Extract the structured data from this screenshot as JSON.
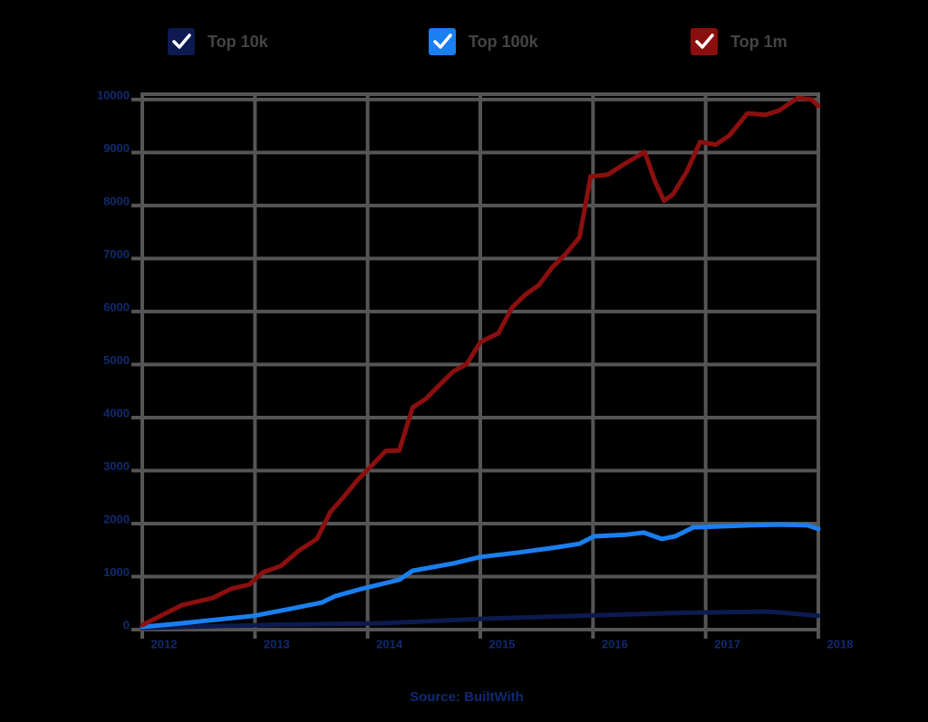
{
  "chart_data": {
    "type": "line",
    "x_label": "Source: BuiltWith",
    "xlim": [
      2012,
      2018
    ],
    "xticks": [
      2012,
      2013,
      2014,
      2015,
      2016,
      2017,
      2018
    ],
    "ylim": [
      0,
      10100
    ],
    "yticks": [
      0,
      1000,
      2000,
      3000,
      4000,
      5000,
      6000,
      7000,
      8000,
      9000,
      10000
    ],
    "grid": true,
    "series": [
      {
        "name": "Top 10k",
        "color": "#0c1a4f",
        "x": [
          2012.0,
          2013.15,
          2014.12,
          2015.08,
          2015.88,
          2016.85,
          2017.57,
          2018.0
        ],
        "values": [
          30,
          90,
          120,
          210,
          260,
          320,
          340,
          260
        ]
      },
      {
        "name": "Top 100k",
        "color": "#1a7ff0",
        "x": [
          2012.0,
          2012.35,
          2012.67,
          2012.99,
          2013.31,
          2013.59,
          2013.71,
          2013.95,
          2014.28,
          2014.4,
          2014.76,
          2015.0,
          2015.32,
          2015.64,
          2015.88,
          2016.01,
          2016.29,
          2016.45,
          2016.61,
          2016.73,
          2016.89,
          2017.17,
          2017.41,
          2017.65,
          2017.9,
          2018.0
        ],
        "values": [
          50,
          120,
          190,
          260,
          390,
          510,
          630,
          770,
          940,
          1110,
          1250,
          1370,
          1450,
          1540,
          1620,
          1760,
          1790,
          1830,
          1710,
          1760,
          1930,
          1950,
          1970,
          1980,
          1970,
          1900
        ]
      },
      {
        "name": "Top 1m",
        "color": "#8b0f0f",
        "x": [
          2012.0,
          2012.35,
          2012.63,
          2012.79,
          2012.95,
          2013.07,
          2013.23,
          2013.39,
          2013.55,
          2013.67,
          2013.79,
          2013.91,
          2014.03,
          2014.16,
          2014.28,
          2014.4,
          2014.52,
          2014.64,
          2014.76,
          2014.88,
          2015.0,
          2015.16,
          2015.28,
          2015.4,
          2015.52,
          2015.64,
          2015.76,
          2015.88,
          2015.98,
          2016.13,
          2016.29,
          2016.46,
          2016.55,
          2016.63,
          2016.71,
          2016.83,
          2016.95,
          2017.09,
          2017.21,
          2017.37,
          2017.53,
          2017.65,
          2017.82,
          2017.94,
          2018.0
        ],
        "values": [
          85,
          460,
          600,
          770,
          850,
          1080,
          1200,
          1490,
          1710,
          2220,
          2510,
          2820,
          3080,
          3370,
          3380,
          4190,
          4360,
          4620,
          4870,
          5010,
          5420,
          5590,
          6070,
          6320,
          6500,
          6840,
          7090,
          7400,
          8550,
          8580,
          8800,
          9010,
          8460,
          8090,
          8210,
          8630,
          9200,
          9150,
          9320,
          9740,
          9710,
          9790,
          10030,
          10000,
          9880
        ]
      }
    ]
  }
}
